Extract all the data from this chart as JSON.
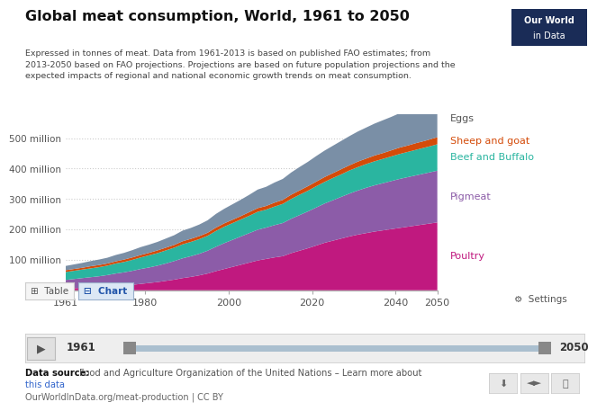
{
  "title": "Global meat consumption, World, 1961 to 2050",
  "subtitle_lines": [
    "Expressed in tonnes of meat. Data from 1961-2013 is based on published FAO estimates; from",
    "2013-2050 based on FAO projections. Projections are based on future population projections and the",
    "expected impacts of regional and national economic growth trends on meat consumption."
  ],
  "years": [
    1961,
    1963,
    1965,
    1967,
    1969,
    1971,
    1973,
    1975,
    1977,
    1979,
    1981,
    1983,
    1985,
    1987,
    1989,
    1991,
    1993,
    1995,
    1997,
    1999,
    2001,
    2003,
    2005,
    2007,
    2009,
    2011,
    2013,
    2015,
    2017,
    2019,
    2021,
    2023,
    2025,
    2027,
    2029,
    2031,
    2033,
    2035,
    2037,
    2039,
    2041,
    2043,
    2045,
    2047,
    2049,
    2050
  ],
  "poultry": [
    6,
    7,
    8,
    9,
    10,
    12,
    14,
    16,
    18,
    21,
    24,
    27,
    31,
    35,
    40,
    44,
    49,
    55,
    63,
    70,
    77,
    84,
    91,
    98,
    103,
    108,
    112,
    122,
    130,
    138,
    147,
    156,
    163,
    170,
    177,
    183,
    188,
    193,
    197,
    201,
    205,
    209,
    213,
    217,
    221,
    223
  ],
  "pigmeat": [
    28,
    30,
    32,
    34,
    36,
    38,
    41,
    43,
    46,
    49,
    51,
    54,
    57,
    61,
    65,
    68,
    71,
    75,
    80,
    85,
    89,
    93,
    97,
    101,
    103,
    106,
    109,
    113,
    117,
    121,
    125,
    129,
    133,
    137,
    141,
    145,
    149,
    152,
    155,
    158,
    161,
    163,
    165,
    167,
    169,
    170
  ],
  "beef_buffalo": [
    26,
    27,
    28,
    29,
    30,
    31,
    33,
    34,
    36,
    38,
    40,
    41,
    43,
    44,
    46,
    47,
    48,
    49,
    52,
    54,
    55,
    56,
    57,
    59,
    59,
    61,
    63,
    65,
    67,
    68,
    70,
    71,
    73,
    74,
    76,
    77,
    78,
    79,
    80,
    81,
    82,
    83,
    84,
    85,
    86,
    87
  ],
  "sheep_goat": [
    6,
    6,
    6,
    7,
    7,
    7,
    7,
    8,
    8,
    8,
    8,
    9,
    9,
    9,
    10,
    10,
    10,
    10,
    11,
    11,
    11,
    11,
    12,
    12,
    12,
    13,
    13,
    14,
    14,
    15,
    15,
    16,
    16,
    17,
    17,
    18,
    18,
    19,
    19,
    20,
    21,
    21,
    22,
    22,
    23,
    23
  ],
  "eggs": [
    14,
    15,
    16,
    17,
    18,
    19,
    21,
    22,
    24,
    26,
    27,
    28,
    30,
    32,
    35,
    36,
    38,
    41,
    45,
    48,
    51,
    54,
    57,
    61,
    63,
    66,
    69,
    73,
    77,
    80,
    84,
    87,
    90,
    93,
    96,
    99,
    102,
    105,
    108,
    110,
    113,
    115,
    117,
    119,
    121,
    122
  ],
  "colors": {
    "poultry": "#c0197f",
    "pigmeat": "#8c5ca8",
    "beef_buffalo": "#2ab5a0",
    "sheep_goat": "#d44b09",
    "eggs": "#7a8fa6"
  },
  "label_colors": {
    "eggs": "#555555",
    "sheep_goat": "#d44b09",
    "beef_buffalo": "#2ab5a0",
    "pigmeat": "#8c5ca8",
    "poultry": "#c0197f"
  },
  "labels": {
    "eggs": "Eggs",
    "sheep_goat": "Sheep and goat",
    "beef_buffalo": "Beef and Buffalo",
    "pigmeat": "Pigmeat",
    "poultry": "Poultry"
  },
  "ylim": [
    0,
    580
  ],
  "yticks": [
    0,
    100,
    200,
    300,
    400,
    500
  ],
  "ytick_labels": [
    "0",
    "100 million",
    "200 million",
    "300 million",
    "400 million",
    "500 million"
  ],
  "xticks": [
    1961,
    1980,
    2000,
    2020,
    2040,
    2050
  ],
  "bg_color": "#ffffff",
  "grid_color": "#cccccc",
  "logo_bg": "#1a2c57",
  "logo_text1": "Our World",
  "logo_text2": "in Data"
}
